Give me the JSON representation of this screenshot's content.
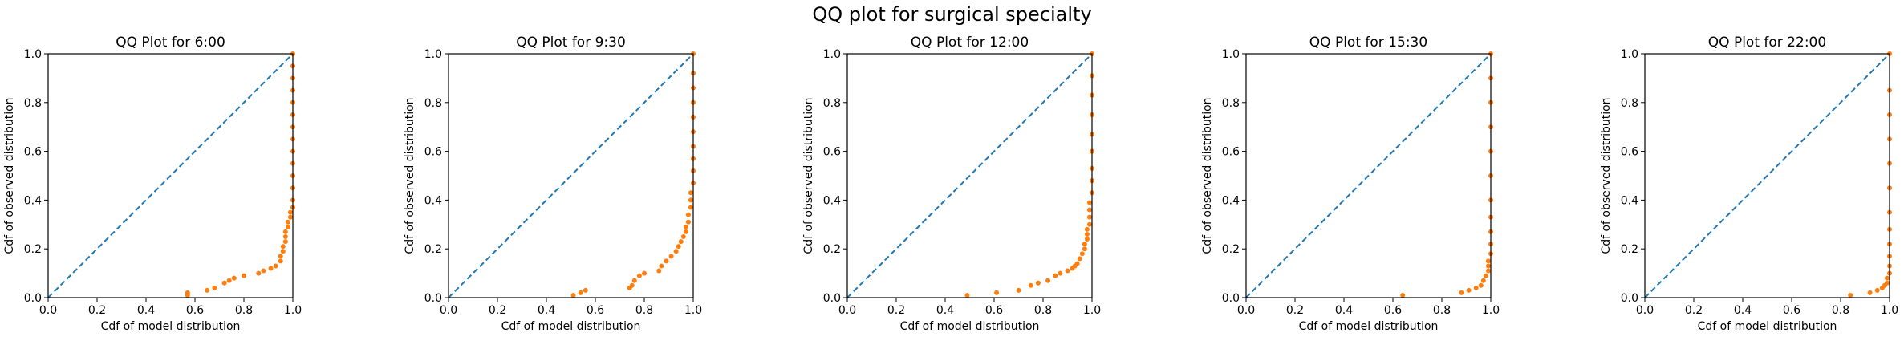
{
  "suptitle": "QQ plot for surgical specialty",
  "colors": {
    "reference": "#1f77b4",
    "points": "#ff7f0e"
  },
  "chart_data": [
    {
      "type": "scatter",
      "title": "QQ Plot for 6:00",
      "xlabel": "Cdf of model distribution",
      "ylabel": "Cdf of observed distribution",
      "xlim": [
        0,
        1
      ],
      "ylim": [
        0,
        1
      ],
      "xticks": [
        "0.0",
        "0.2",
        "0.4",
        "0.6",
        "0.8",
        "1.0"
      ],
      "yticks": [
        "0.0",
        "0.2",
        "0.4",
        "0.6",
        "0.8",
        "1.0"
      ],
      "reference_line": "y = x, dashed",
      "points": [
        [
          0.57,
          0.01
        ],
        [
          0.57,
          0.02
        ],
        [
          0.65,
          0.03
        ],
        [
          0.68,
          0.04
        ],
        [
          0.72,
          0.06
        ],
        [
          0.74,
          0.07
        ],
        [
          0.76,
          0.08
        ],
        [
          0.8,
          0.09
        ],
        [
          0.86,
          0.1
        ],
        [
          0.88,
          0.11
        ],
        [
          0.91,
          0.12
        ],
        [
          0.93,
          0.13
        ],
        [
          0.95,
          0.15
        ],
        [
          0.95,
          0.17
        ],
        [
          0.96,
          0.19
        ],
        [
          0.96,
          0.21
        ],
        [
          0.97,
          0.23
        ],
        [
          0.97,
          0.25
        ],
        [
          0.97,
          0.27
        ],
        [
          0.98,
          0.29
        ],
        [
          0.98,
          0.31
        ],
        [
          0.99,
          0.33
        ],
        [
          0.99,
          0.35
        ],
        [
          1.0,
          0.37
        ],
        [
          1.0,
          0.4
        ],
        [
          1.0,
          0.45
        ],
        [
          1.0,
          0.5
        ],
        [
          1.0,
          0.55
        ],
        [
          1.0,
          0.6
        ],
        [
          1.0,
          0.65
        ],
        [
          1.0,
          0.7
        ],
        [
          1.0,
          0.75
        ],
        [
          1.0,
          0.8
        ],
        [
          1.0,
          0.85
        ],
        [
          1.0,
          0.9
        ],
        [
          1.0,
          0.95
        ],
        [
          1.0,
          1.0
        ]
      ]
    },
    {
      "type": "scatter",
      "title": "QQ Plot for 9:30",
      "xlabel": "Cdf of model distribution",
      "ylabel": "Cdf of observed distribution",
      "xlim": [
        0,
        1
      ],
      "ylim": [
        0,
        1
      ],
      "xticks": [
        "0.0",
        "0.2",
        "0.4",
        "0.6",
        "0.8",
        "1.0"
      ],
      "yticks": [
        "0.0",
        "0.2",
        "0.4",
        "0.6",
        "0.8",
        "1.0"
      ],
      "reference_line": "y = x, dashed",
      "points": [
        [
          0.51,
          0.01
        ],
        [
          0.54,
          0.02
        ],
        [
          0.56,
          0.03
        ],
        [
          0.74,
          0.04
        ],
        [
          0.75,
          0.05
        ],
        [
          0.76,
          0.07
        ],
        [
          0.78,
          0.09
        ],
        [
          0.8,
          0.1
        ],
        [
          0.86,
          0.11
        ],
        [
          0.87,
          0.13
        ],
        [
          0.89,
          0.15
        ],
        [
          0.91,
          0.17
        ],
        [
          0.93,
          0.19
        ],
        [
          0.94,
          0.21
        ],
        [
          0.95,
          0.23
        ],
        [
          0.96,
          0.25
        ],
        [
          0.97,
          0.27
        ],
        [
          0.97,
          0.29
        ],
        [
          0.98,
          0.31
        ],
        [
          0.98,
          0.34
        ],
        [
          0.99,
          0.37
        ],
        [
          0.99,
          0.4
        ],
        [
          0.99,
          0.43
        ],
        [
          1.0,
          0.47
        ],
        [
          1.0,
          0.52
        ],
        [
          1.0,
          0.57
        ],
        [
          1.0,
          0.62
        ],
        [
          1.0,
          0.68
        ],
        [
          1.0,
          0.74
        ],
        [
          1.0,
          0.8
        ],
        [
          1.0,
          0.86
        ],
        [
          1.0,
          0.92
        ],
        [
          1.0,
          1.0
        ]
      ]
    },
    {
      "type": "scatter",
      "title": "QQ Plot for 12:00",
      "xlabel": "Cdf of model distribution",
      "ylabel": "Cdf of observed distribution",
      "xlim": [
        0,
        1
      ],
      "ylim": [
        0,
        1
      ],
      "xticks": [
        "0.0",
        "0.2",
        "0.4",
        "0.6",
        "0.8",
        "1.0"
      ],
      "yticks": [
        "0.0",
        "0.2",
        "0.4",
        "0.6",
        "0.8",
        "1.0"
      ],
      "reference_line": "y = x, dashed",
      "points": [
        [
          0.49,
          0.01
        ],
        [
          0.61,
          0.02
        ],
        [
          0.7,
          0.03
        ],
        [
          0.75,
          0.05
        ],
        [
          0.78,
          0.06
        ],
        [
          0.82,
          0.07
        ],
        [
          0.85,
          0.09
        ],
        [
          0.87,
          0.1
        ],
        [
          0.9,
          0.11
        ],
        [
          0.92,
          0.12
        ],
        [
          0.93,
          0.13
        ],
        [
          0.94,
          0.14
        ],
        [
          0.95,
          0.16
        ],
        [
          0.96,
          0.18
        ],
        [
          0.97,
          0.2
        ],
        [
          0.97,
          0.22
        ],
        [
          0.98,
          0.24
        ],
        [
          0.98,
          0.26
        ],
        [
          0.98,
          0.28
        ],
        [
          0.99,
          0.3
        ],
        [
          0.99,
          0.33
        ],
        [
          0.99,
          0.36
        ],
        [
          0.99,
          0.39
        ],
        [
          1.0,
          0.43
        ],
        [
          1.0,
          0.48
        ],
        [
          1.0,
          0.53
        ],
        [
          1.0,
          0.6
        ],
        [
          1.0,
          0.67
        ],
        [
          1.0,
          0.75
        ],
        [
          1.0,
          0.83
        ],
        [
          1.0,
          0.91
        ],
        [
          1.0,
          1.0
        ]
      ]
    },
    {
      "type": "scatter",
      "title": "QQ Plot for 15:30",
      "xlabel": "Cdf of model distribution",
      "ylabel": "Cdf of observed distribution",
      "xlim": [
        0,
        1
      ],
      "ylim": [
        0,
        1
      ],
      "xticks": [
        "0.0",
        "0.2",
        "0.4",
        "0.6",
        "0.8",
        "1.0"
      ],
      "yticks": [
        "0.0",
        "0.2",
        "0.4",
        "0.6",
        "0.8",
        "1.0"
      ],
      "reference_line": "y = x, dashed",
      "points": [
        [
          0.64,
          0.01
        ],
        [
          0.88,
          0.02
        ],
        [
          0.91,
          0.03
        ],
        [
          0.94,
          0.04
        ],
        [
          0.96,
          0.05
        ],
        [
          0.97,
          0.07
        ],
        [
          0.98,
          0.09
        ],
        [
          0.99,
          0.11
        ],
        [
          0.99,
          0.13
        ],
        [
          0.99,
          0.15
        ],
        [
          1.0,
          0.18
        ],
        [
          1.0,
          0.22
        ],
        [
          1.0,
          0.27
        ],
        [
          1.0,
          0.33
        ],
        [
          1.0,
          0.4
        ],
        [
          1.0,
          0.5
        ],
        [
          1.0,
          0.6
        ],
        [
          1.0,
          0.7
        ],
        [
          1.0,
          0.8
        ],
        [
          1.0,
          0.9
        ],
        [
          1.0,
          1.0
        ]
      ]
    },
    {
      "type": "scatter",
      "title": "QQ Plot for 22:00",
      "xlabel": "Cdf of model distribution",
      "ylabel": "Cdf of observed distribution",
      "xlim": [
        0,
        1
      ],
      "ylim": [
        0,
        1
      ],
      "xticks": [
        "0.0",
        "0.2",
        "0.4",
        "0.6",
        "0.8",
        "1.0"
      ],
      "yticks": [
        "0.0",
        "0.2",
        "0.4",
        "0.6",
        "0.8",
        "1.0"
      ],
      "reference_line": "y = x, dashed",
      "points": [
        [
          0.84,
          0.01
        ],
        [
          0.92,
          0.02
        ],
        [
          0.95,
          0.03
        ],
        [
          0.97,
          0.04
        ],
        [
          0.98,
          0.05
        ],
        [
          0.99,
          0.06
        ],
        [
          0.99,
          0.08
        ],
        [
          1.0,
          0.1
        ],
        [
          1.0,
          0.13
        ],
        [
          1.0,
          0.17
        ],
        [
          1.0,
          0.22
        ],
        [
          1.0,
          0.28
        ],
        [
          1.0,
          0.35
        ],
        [
          1.0,
          0.45
        ],
        [
          1.0,
          0.55
        ],
        [
          1.0,
          0.65
        ],
        [
          1.0,
          0.75
        ],
        [
          1.0,
          0.85
        ],
        [
          1.0,
          1.0
        ]
      ]
    }
  ]
}
